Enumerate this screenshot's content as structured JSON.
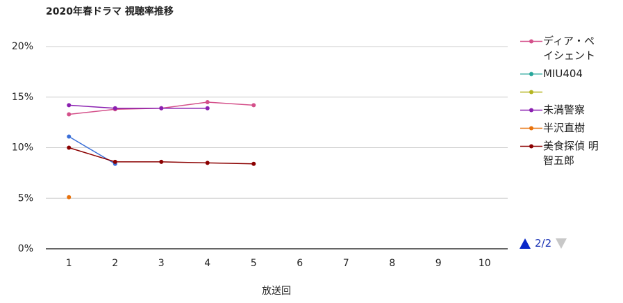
{
  "chart_data": {
    "type": "line",
    "title": "2020年春ドラマ 視聴率推移",
    "x_label": "放送回",
    "categories": [
      "1",
      "2",
      "3",
      "4",
      "5",
      "6",
      "7",
      "8",
      "9",
      "10"
    ],
    "ylim": [
      0,
      20
    ],
    "yticks": [
      {
        "value": 0,
        "label": "0%"
      },
      {
        "value": 5,
        "label": "5%"
      },
      {
        "value": 10,
        "label": "10%"
      },
      {
        "value": 15,
        "label": "15%"
      },
      {
        "value": 20,
        "label": "20%"
      }
    ],
    "grid": true,
    "legend": "right",
    "legend_page": "2/2",
    "series": [
      {
        "name": null,
        "in_legend": false,
        "color": "#3a6fd8",
        "values": [
          11.1,
          8.4,
          null,
          null,
          null,
          null,
          null,
          null,
          null,
          null
        ]
      },
      {
        "name": "ディア・ペイシェント",
        "color": "#d4508a",
        "values": [
          13.3,
          13.8,
          13.9,
          14.5,
          14.2,
          null,
          null,
          null,
          null,
          null
        ]
      },
      {
        "name": "MIU404",
        "color": "#26a69a",
        "values": [
          null,
          null,
          null,
          null,
          null,
          null,
          null,
          null,
          null,
          null
        ]
      },
      {
        "name": null,
        "color": "#b5b520",
        "values": [
          null,
          null,
          null,
          null,
          null,
          null,
          null,
          null,
          null,
          null
        ]
      },
      {
        "name": "未満警察",
        "color": "#8a1fb0",
        "values": [
          14.2,
          13.9,
          13.9,
          13.9,
          null,
          null,
          null,
          null,
          null,
          null
        ]
      },
      {
        "name": "半沢直樹",
        "color": "#e8710a",
        "values": [
          5.1,
          null,
          null,
          null,
          null,
          null,
          null,
          null,
          null,
          null
        ]
      },
      {
        "name": "美食探偵 明智五郎",
        "color": "#8b0000",
        "values": [
          10.0,
          8.6,
          8.6,
          8.5,
          8.4,
          null,
          null,
          null,
          null,
          null
        ]
      }
    ]
  }
}
